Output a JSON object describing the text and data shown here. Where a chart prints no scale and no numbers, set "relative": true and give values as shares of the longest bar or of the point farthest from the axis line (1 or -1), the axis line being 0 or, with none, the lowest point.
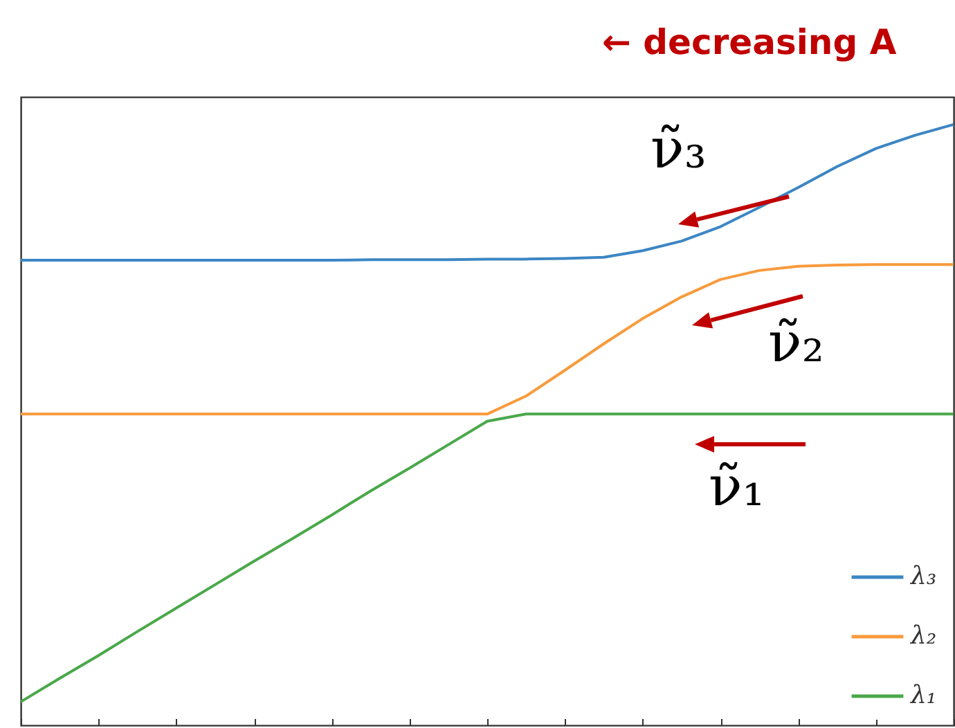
{
  "chart_data": {
    "type": "line",
    "relative": true,
    "categories": [
      null,
      null,
      null,
      null,
      null,
      null,
      null,
      null,
      null,
      null,
      null,
      null,
      null,
      null,
      null,
      null,
      null,
      null,
      null,
      null,
      null,
      null,
      null,
      null,
      null
    ],
    "series": [
      {
        "name": "λ₃",
        "color": "#3c86c4",
        "values": [
          0.774,
          0.774,
          0.774,
          0.774,
          0.774,
          0.774,
          0.774,
          0.774,
          0.774,
          0.775,
          0.775,
          0.775,
          0.776,
          0.776,
          0.777,
          0.779,
          0.79,
          0.806,
          0.83,
          0.862,
          0.895,
          0.93,
          0.96,
          0.982,
          1
        ]
      },
      {
        "name": "λ₂",
        "color": "#f89a3c",
        "values": [
          0.518,
          0.518,
          0.518,
          0.518,
          0.518,
          0.518,
          0.518,
          0.518,
          0.518,
          0.518,
          0.518,
          0.518,
          0.518,
          0.548,
          0.591,
          0.635,
          0.677,
          0.713,
          0.742,
          0.757,
          0.764,
          0.766,
          0.767,
          0.767,
          0.767
        ]
      },
      {
        "name": "λ₁",
        "color": "#4aa84a",
        "values": [
          0.039,
          0.078,
          0.116,
          0.156,
          0.195,
          0.234,
          0.273,
          0.311,
          0.35,
          0.39,
          0.428,
          0.467,
          0.506,
          0.518,
          0.518,
          0.518,
          0.518,
          0.518,
          0.518,
          0.518,
          0.518,
          0.518,
          0.518,
          0.518,
          0.518
        ]
      }
    ],
    "annotations": [
      "← decreasing A",
      "ν̃₃",
      "ν̃₂",
      "ν̃₁"
    ],
    "legend": "bottom right",
    "grid": false,
    "tick_labels": false
  }
}
